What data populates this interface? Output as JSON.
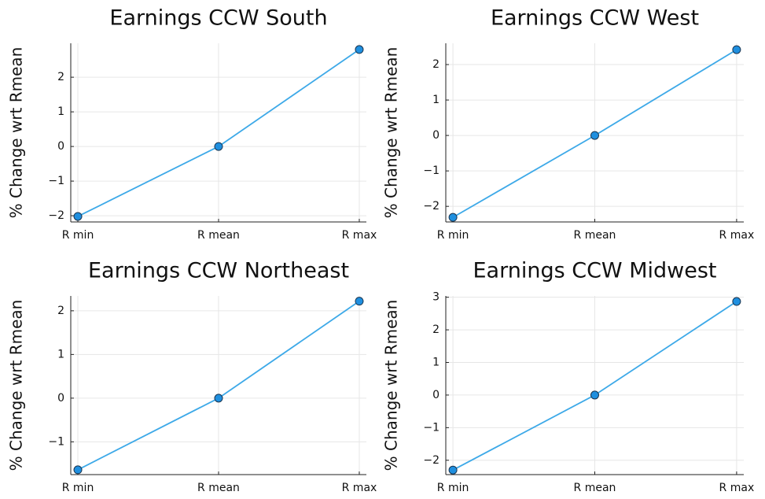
{
  "chart_data": [
    {
      "type": "line",
      "title": "Earnings CCW South",
      "y_label": "% Change wrt Rmean",
      "categories": [
        "R min",
        "R mean",
        "R max"
      ],
      "series": [
        {
          "name": "y1",
          "color": "#3da9e8",
          "marker_color": "#1f8fdf",
          "values": [
            -2.02,
            0,
            2.8
          ]
        }
      ],
      "ylim": [
        -2.18,
        2.98
      ],
      "yticks": [
        {
          "value": -2,
          "label": "−2"
        },
        {
          "value": -1,
          "label": "−1"
        },
        0,
        1,
        2
      ],
      "grid": true
    },
    {
      "type": "line",
      "title": "Earnings CCW West",
      "y_label": "% Change wrt Rmean",
      "categories": [
        "R min",
        "R mean",
        "R max"
      ],
      "series": [
        {
          "name": "y1",
          "color": "#3da9e8",
          "marker_color": "#1f8fdf",
          "values": [
            -2.31,
            0,
            2.42
          ]
        }
      ],
      "ylim": [
        -2.44,
        2.6
      ],
      "yticks": [
        {
          "value": -2,
          "label": "−2"
        },
        {
          "value": -1,
          "label": "−1"
        },
        0,
        1,
        2
      ],
      "grid": true
    },
    {
      "type": "line",
      "title": "Earnings CCW Northeast",
      "y_label": "% Change wrt Rmean",
      "categories": [
        "R min",
        "R mean",
        "R max"
      ],
      "series": [
        {
          "name": "y1",
          "color": "#3da9e8",
          "marker_color": "#1f8fdf",
          "values": [
            -1.64,
            0,
            2.22
          ]
        }
      ],
      "ylim": [
        -1.75,
        2.34
      ],
      "yticks": [
        {
          "value": -1,
          "label": "−1"
        },
        0,
        1,
        2
      ],
      "grid": true
    },
    {
      "type": "line",
      "title": "Earnings CCW Midwest",
      "y_label": "% Change wrt Rmean",
      "categories": [
        "R min",
        "R mean",
        "R max"
      ],
      "series": [
        {
          "name": "y1",
          "color": "#3da9e8",
          "marker_color": "#1f8fdf",
          "values": [
            -2.3,
            0,
            2.87
          ]
        }
      ],
      "ylim": [
        -2.44,
        3.04
      ],
      "yticks": [
        {
          "value": -2,
          "label": "−2"
        },
        {
          "value": -1,
          "label": "−1"
        },
        0,
        1,
        2,
        3
      ],
      "grid": true
    }
  ]
}
